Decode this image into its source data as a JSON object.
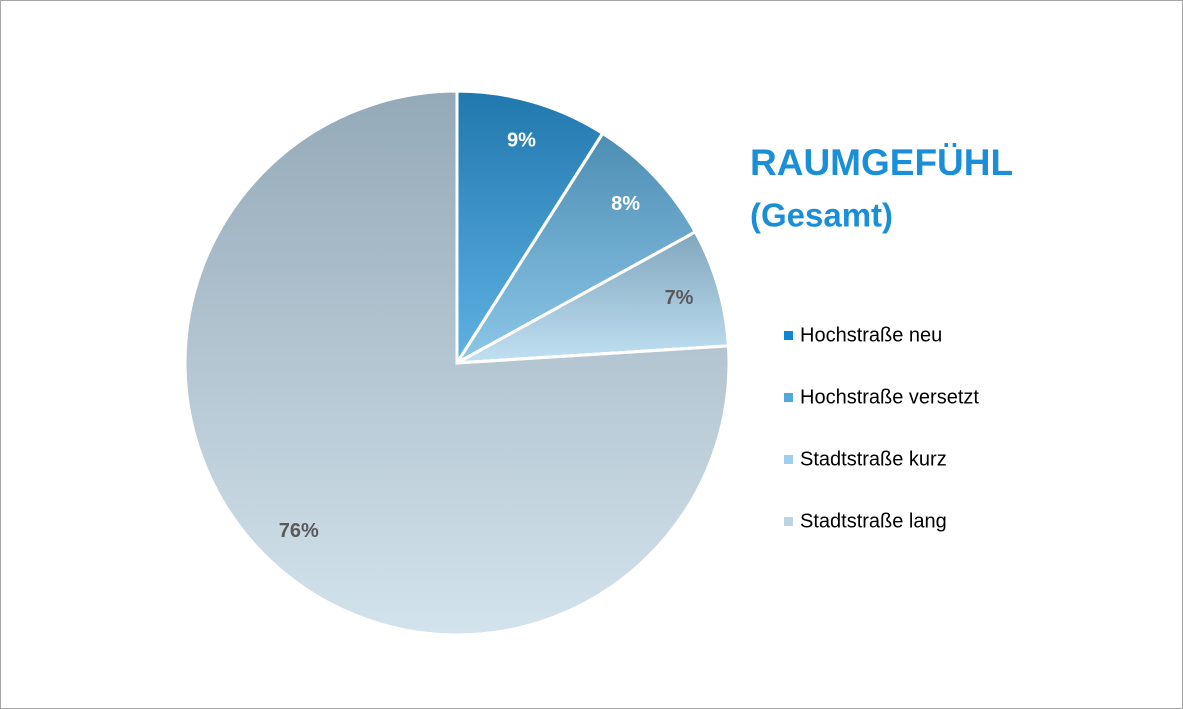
{
  "chart_data": {
    "type": "pie",
    "title": "RAUMGEFÜHL",
    "subtitle": "(Gesamt)",
    "categories": [
      "Hochstraße neu",
      "Hochstraße versetzt",
      "Stadtstraße kurz",
      "Stadtstraße lang"
    ],
    "values": [
      9,
      8,
      7,
      76
    ],
    "value_labels": [
      "9%",
      "8%",
      "7%",
      "76%"
    ],
    "colors": [
      "#0a88d4",
      "#4fa9dc",
      "#9fcfec",
      "#bcd4e3"
    ],
    "legend": "right"
  }
}
